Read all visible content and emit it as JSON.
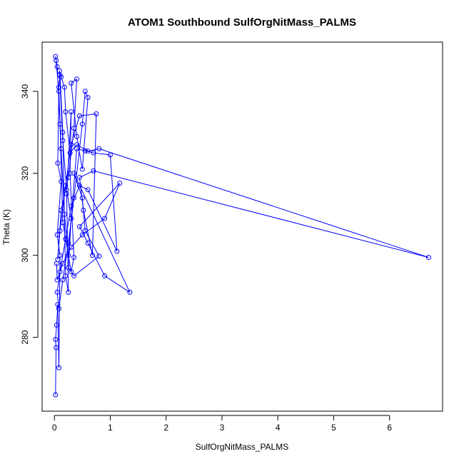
{
  "chart_data": {
    "type": "scatter",
    "title": "ATOM1 Southbound SulfOrgNitMass_PALMS",
    "xlabel": "SulfOrgNitMass_PALMS",
    "ylabel": "Theta (K)",
    "xlim": [
      -0.22,
      6.95
    ],
    "ylim": [
      262,
      352
    ],
    "x_ticks": [
      0,
      1,
      2,
      3,
      4,
      5,
      6
    ],
    "y_ticks": [
      280,
      300,
      320,
      340
    ],
    "grid": false,
    "legend": "none",
    "colors": {
      "series": "#0000ff",
      "axis": "#000000",
      "background": "#ffffff"
    },
    "series": [
      {
        "style": "points-and-lines",
        "points": [
          [
            0.02,
            266
          ],
          [
            0.03,
            277.5
          ],
          [
            0.02,
            279.5
          ],
          [
            0.04,
            283
          ],
          [
            0.06,
            288
          ],
          [
            0.08,
            272.6
          ],
          [
            0.1,
            300
          ],
          [
            0.05,
            305
          ],
          [
            0.12,
            318
          ],
          [
            0.06,
            322.5
          ],
          [
            0.08,
            341
          ],
          [
            0.1,
            344
          ],
          [
            0.15,
            330
          ],
          [
            0.2,
            295
          ],
          [
            0.25,
            291
          ],
          [
            0.22,
            315
          ],
          [
            0.3,
            335
          ],
          [
            0.28,
            320
          ],
          [
            0.35,
            299.5
          ],
          [
            0.3,
            296
          ],
          [
            0.15,
            308
          ],
          [
            0.1,
            332
          ],
          [
            0.05,
            346
          ],
          [
            0.02,
            348.5
          ],
          [
            0.03,
            347.5
          ],
          [
            0.08,
            340
          ],
          [
            0.12,
            326
          ],
          [
            0.18,
            310
          ],
          [
            0.25,
            300
          ],
          [
            0.4,
            326
          ],
          [
            0.55,
            325.5
          ],
          [
            0.7,
            325
          ],
          [
            1.0,
            324.5
          ],
          [
            1.12,
            301
          ],
          [
            0.6,
            316
          ],
          [
            0.45,
            317
          ],
          [
            0.3,
            312
          ],
          [
            0.2,
            304
          ],
          [
            0.1,
            296
          ],
          [
            0.05,
            291
          ],
          [
            0.08,
            287
          ],
          [
            0.15,
            294
          ],
          [
            0.25,
            303
          ],
          [
            0.35,
            314
          ],
          [
            0.5,
            332
          ],
          [
            0.55,
            340
          ],
          [
            0.6,
            338.5
          ],
          [
            0.5,
            321
          ],
          [
            0.4,
            329
          ],
          [
            0.3,
            342
          ],
          [
            0.4,
            343
          ],
          [
            0.35,
            331
          ],
          [
            0.25,
            319
          ],
          [
            0.12,
            311
          ],
          [
            0.06,
            299
          ],
          [
            0.1,
            306
          ],
          [
            0.2,
            317
          ],
          [
            0.3,
            327
          ],
          [
            0.45,
            334
          ],
          [
            0.75,
            334.5
          ],
          [
            0.68,
            300
          ],
          [
            0.52,
            311
          ],
          [
            0.45,
            319
          ],
          [
            0.7,
            320.6
          ],
          [
            6.7,
            299.5
          ],
          [
            0.8,
            326
          ],
          [
            0.6,
            325.4
          ],
          [
            0.4,
            327
          ],
          [
            0.28,
            325
          ],
          [
            0.2,
            335
          ],
          [
            0.18,
            341
          ],
          [
            0.12,
            343.5
          ],
          [
            0.09,
            345
          ],
          [
            0.15,
            328
          ],
          [
            0.22,
            316
          ],
          [
            0.3,
            309
          ],
          [
            0.25,
            297
          ],
          [
            0.35,
            295
          ],
          [
            0.8,
            299.8
          ],
          [
            0.55,
            306
          ],
          [
            0.5,
            314
          ],
          [
            0.35,
            320
          ],
          [
            1.35,
            291
          ],
          [
            0.9,
            295
          ],
          [
            0.6,
            303
          ],
          [
            0.45,
            307
          ],
          [
            1.17,
            317.6
          ],
          [
            0.9,
            309
          ],
          [
            0.5,
            305
          ],
          [
            0.3,
            302
          ],
          [
            0.15,
            298
          ],
          [
            0.05,
            294
          ],
          [
            0.04,
            298
          ]
        ]
      }
    ]
  }
}
